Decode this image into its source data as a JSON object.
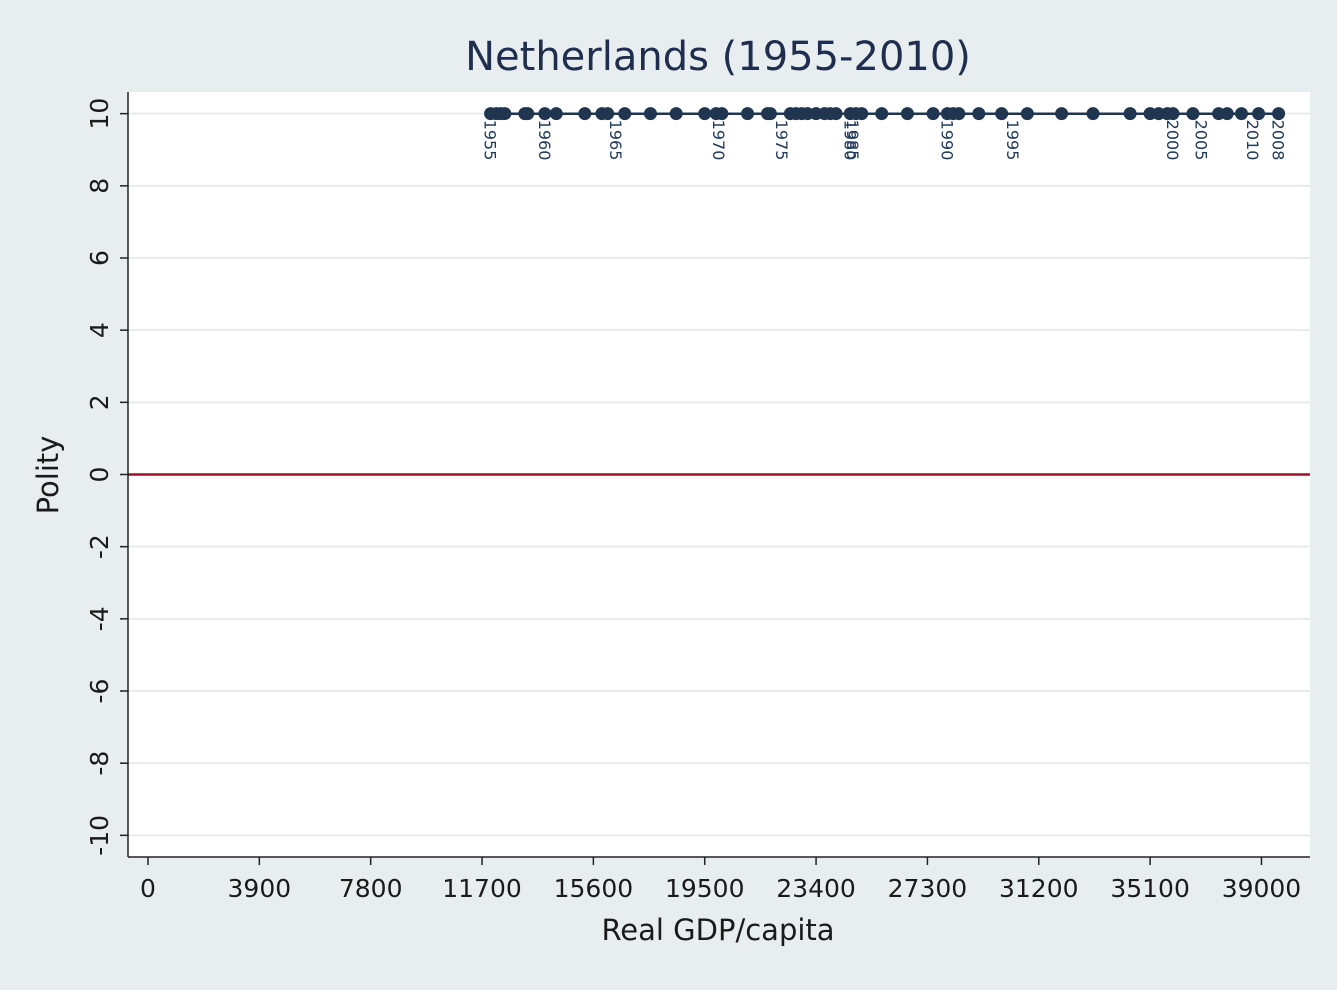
{
  "chart_data": {
    "type": "scatter",
    "title": "Netherlands (1955-2010)",
    "xlabel": "Real GDP/capita",
    "ylabel": "Polity",
    "xlim": [
      -700,
      40700
    ],
    "ylim": [
      -10.6,
      10.6
    ],
    "x_ticks": [
      0,
      3900,
      7800,
      11700,
      15600,
      19500,
      23400,
      27300,
      31200,
      35100,
      39000
    ],
    "y_ticks": [
      -10,
      -8,
      -6,
      -4,
      -2,
      0,
      2,
      4,
      6,
      8,
      10
    ],
    "grid": "horizontal",
    "reference_line": {
      "y": 0,
      "color": "#a0102a"
    },
    "series": [
      {
        "color": "#1f3550",
        "points": [
          {
            "x": 12000,
            "y": 10
          },
          {
            "x": 12200,
            "y": 10
          },
          {
            "x": 12350,
            "y": 10
          },
          {
            "x": 12500,
            "y": 10
          },
          {
            "x": 13200,
            "y": 10
          },
          {
            "x": 13300,
            "y": 10
          },
          {
            "x": 13900,
            "y": 10
          },
          {
            "x": 14300,
            "y": 10
          },
          {
            "x": 15300,
            "y": 10
          },
          {
            "x": 15900,
            "y": 10
          },
          {
            "x": 16100,
            "y": 10
          },
          {
            "x": 16700,
            "y": 10
          },
          {
            "x": 17600,
            "y": 10
          },
          {
            "x": 18500,
            "y": 10
          },
          {
            "x": 19500,
            "y": 10
          },
          {
            "x": 19900,
            "y": 10
          },
          {
            "x": 20100,
            "y": 10
          },
          {
            "x": 21000,
            "y": 10
          },
          {
            "x": 21700,
            "y": 10
          },
          {
            "x": 21800,
            "y": 10
          },
          {
            "x": 22500,
            "y": 10
          },
          {
            "x": 22700,
            "y": 10
          },
          {
            "x": 22900,
            "y": 10
          },
          {
            "x": 23100,
            "y": 10
          },
          {
            "x": 23400,
            "y": 10
          },
          {
            "x": 23700,
            "y": 10
          },
          {
            "x": 23900,
            "y": 10
          },
          {
            "x": 24100,
            "y": 10
          },
          {
            "x": 24600,
            "y": 10
          },
          {
            "x": 24800,
            "y": 10
          },
          {
            "x": 25000,
            "y": 10
          },
          {
            "x": 25700,
            "y": 10
          },
          {
            "x": 26600,
            "y": 10
          },
          {
            "x": 27500,
            "y": 10
          },
          {
            "x": 28000,
            "y": 10
          },
          {
            "x": 28200,
            "y": 10
          },
          {
            "x": 28400,
            "y": 10
          },
          {
            "x": 29100,
            "y": 10
          },
          {
            "x": 29900,
            "y": 10
          },
          {
            "x": 30800,
            "y": 10
          },
          {
            "x": 32000,
            "y": 10
          },
          {
            "x": 33100,
            "y": 10
          },
          {
            "x": 34400,
            "y": 10
          },
          {
            "x": 35100,
            "y": 10
          },
          {
            "x": 35400,
            "y": 10
          },
          {
            "x": 35700,
            "y": 10
          },
          {
            "x": 35900,
            "y": 10
          },
          {
            "x": 36600,
            "y": 10
          },
          {
            "x": 37500,
            "y": 10
          },
          {
            "x": 37800,
            "y": 10
          },
          {
            "x": 38300,
            "y": 10
          },
          {
            "x": 38900,
            "y": 10
          },
          {
            "x": 39600,
            "y": 10
          }
        ],
        "labels": [
          {
            "text": "1955",
            "x": 12000
          },
          {
            "text": "1960",
            "x": 13900
          },
          {
            "text": "1965",
            "x": 16400
          },
          {
            "text": "1970",
            "x": 20000
          },
          {
            "text": "1975",
            "x": 22200
          },
          {
            "text": "1980",
            "x": 24600
          },
          {
            "text": "1985",
            "x": 24700
          },
          {
            "text": "1990",
            "x": 28000
          },
          {
            "text": "1995",
            "x": 30300
          },
          {
            "text": "2000",
            "x": 35900
          },
          {
            "text": "2005",
            "x": 36900
          },
          {
            "text": "2010",
            "x": 38700
          },
          {
            "text": "2008",
            "x": 39600
          }
        ]
      }
    ]
  }
}
